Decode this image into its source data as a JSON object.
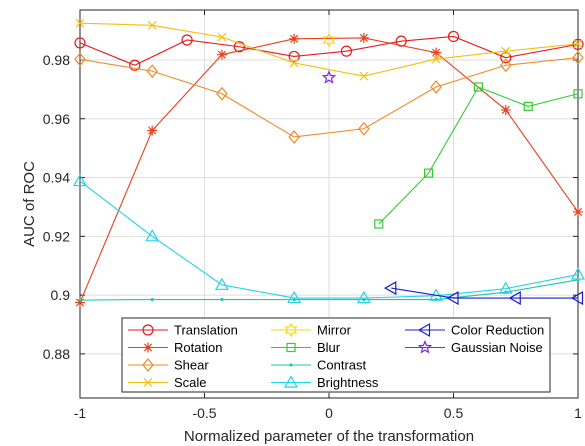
{
  "chart_data": {
    "type": "line",
    "xlabel": "Normalized parameter of the transformation",
    "ylabel": "AUC of ROC",
    "xlim": [
      -1,
      1
    ],
    "ylim": [
      0.865,
      0.997
    ],
    "xticks": [
      -1,
      -0.5,
      0,
      0.5,
      1
    ],
    "xtick_labels": [
      "-1",
      "-0.5",
      "0",
      "0.5",
      "1"
    ],
    "yticks": [
      0.88,
      0.9,
      0.92,
      0.94,
      0.96,
      0.98
    ],
    "ytick_labels": [
      "0.88",
      "0.9",
      "0.92",
      "0.94",
      "0.96",
      "0.98"
    ],
    "grid": true,
    "legend_position": "bottom",
    "series": [
      {
        "name": "Translation",
        "color": "#e41a1c",
        "marker": "circle",
        "x": [
          -1,
          -0.78,
          -0.57,
          -0.36,
          -0.14,
          0.07,
          0.29,
          0.5,
          0.71,
          1
        ],
        "y": [
          0.9858,
          0.9782,
          0.9868,
          0.9845,
          0.9812,
          0.983,
          0.9864,
          0.988,
          0.9808,
          0.9853
        ]
      },
      {
        "name": "Rotation",
        "color": "#e8401e",
        "marker": "asterisk",
        "x": [
          -1,
          -0.71,
          -0.43,
          -0.14,
          0.14,
          0.43,
          0.71,
          1
        ],
        "y": [
          0.8975,
          0.956,
          0.9818,
          0.9872,
          0.9875,
          0.9825,
          0.963,
          0.9283
        ]
      },
      {
        "name": "Shear",
        "color": "#f08a24",
        "marker": "diamond",
        "x": [
          -1,
          -0.71,
          -0.43,
          -0.14,
          0.14,
          0.43,
          0.71,
          1
        ],
        "y": [
          0.9802,
          0.9762,
          0.9685,
          0.9538,
          0.9566,
          0.9708,
          0.9782,
          0.9808
        ]
      },
      {
        "name": "Scale",
        "color": "#f2c012",
        "marker": "cross",
        "x": [
          -1,
          -0.71,
          -0.43,
          -0.14,
          0.14,
          0.43,
          0.71,
          1
        ],
        "y": [
          0.9925,
          0.9918,
          0.9878,
          0.979,
          0.9745,
          0.9803,
          0.983,
          0.9855
        ]
      },
      {
        "name": "Mirror",
        "color": "#f6d61a",
        "marker": "hexagram",
        "x": [
          0
        ],
        "y": [
          0.9868
        ]
      },
      {
        "name": "Blur",
        "color": "#33cc33",
        "marker": "square",
        "x": [
          0.2,
          0.4,
          0.6,
          0.8,
          1
        ],
        "y": [
          0.9242,
          0.9415,
          0.9708,
          0.9642,
          0.9685
        ]
      },
      {
        "name": "Contrast",
        "color": "#1fc9a0",
        "marker": "dot",
        "x": [
          -1,
          -0.71,
          -0.43,
          -0.14,
          0.14,
          0.43,
          0.71,
          1
        ],
        "y": [
          0.8983,
          0.8985,
          0.8985,
          0.8985,
          0.8985,
          0.8985,
          0.901,
          0.9052
        ]
      },
      {
        "name": "Brightness",
        "color": "#22d4e8",
        "marker": "triangle-up",
        "x": [
          -1,
          -0.71,
          -0.43,
          -0.14,
          0.14,
          0.43,
          0.71,
          1
        ],
        "y": [
          0.9388,
          0.92,
          0.9035,
          0.899,
          0.899,
          0.8998,
          0.9022,
          0.907
        ]
      },
      {
        "name": "Color Reduction",
        "color": "#1c1fd0",
        "marker": "triangle-left",
        "x": [
          0.25,
          0.5,
          0.75,
          1
        ],
        "y": [
          0.9024,
          0.899,
          0.899,
          0.899
        ]
      },
      {
        "name": "Gaussian Noise",
        "color": "#7a2be2",
        "marker": "pentagram",
        "x": [
          0
        ],
        "y": [
          0.974
        ]
      }
    ]
  }
}
